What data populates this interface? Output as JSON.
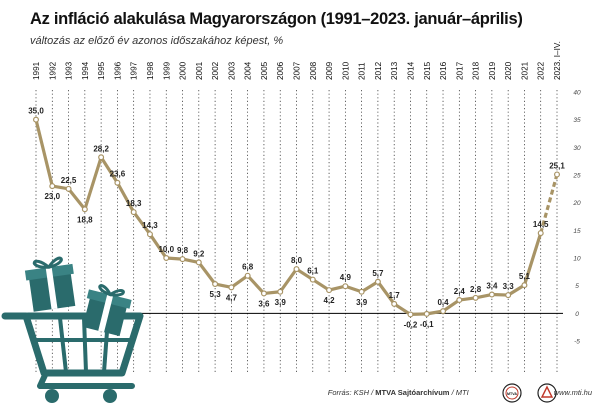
{
  "title": "Az infláció alakulása Magyarországon (1991–2023. január–április)",
  "subtitle": "változás az előző év azonos időszakához képest, %",
  "footer": {
    "source_prefix": "Forrás: KSH / ",
    "source_bold": "MTVA Sajtóarchívum",
    "source_suffix": " / MTI",
    "badge1": "MTVA",
    "website": "www.mti.hu"
  },
  "colors": {
    "line": "#a89466",
    "dashed": "#a89466",
    "marker_fill": "#ffffff",
    "zero_line": "#000000",
    "grid": "#222222",
    "cart": "#2a6b6c"
  },
  "icons": [
    "shopping-cart-icon",
    "gift-box-icon",
    "mtva-logo-icon",
    "mti-logo-icon"
  ],
  "chart_data": {
    "type": "line",
    "categories": [
      "1991",
      "1992",
      "1993",
      "1994",
      "1995",
      "1996",
      "1997",
      "1998",
      "1999",
      "2000",
      "2001",
      "2002",
      "2003",
      "2004",
      "2005",
      "2006",
      "2007",
      "2008",
      "2009",
      "2010",
      "2011",
      "2012",
      "2013",
      "2014",
      "2015",
      "2016",
      "2017",
      "2018",
      "2019",
      "2020",
      "2021",
      "2022",
      "2023. I–IV."
    ],
    "values": [
      35.0,
      23.0,
      22.5,
      18.8,
      28.2,
      23.6,
      18.3,
      14.3,
      10.0,
      9.8,
      9.2,
      5.3,
      4.7,
      6.8,
      3.6,
      3.9,
      8.0,
      6.1,
      4.2,
      4.9,
      3.9,
      5.7,
      1.7,
      -0.2,
      -0.1,
      0.4,
      2.4,
      2.8,
      3.4,
      3.3,
      5.1,
      14.5,
      25.1
    ],
    "value_labels": [
      "35,0",
      "23,0",
      "22,5",
      "18,8",
      "28,2",
      "23,6",
      "18,3",
      "14,3",
      "10,0",
      "9,8",
      "9,2",
      "5,3",
      "4,7",
      "6,8",
      "3,6",
      "3,9",
      "8,0",
      "6,1",
      "4,2",
      "4,9",
      "3,9",
      "5,7",
      "1,7",
      "-0,2",
      "-0,1",
      "0,4",
      "2,4",
      "2,8",
      "3,4",
      "3,3",
      "5,1",
      "14,5",
      "25,1"
    ],
    "label_positions": [
      "above",
      "below",
      "above",
      "below",
      "above",
      "above",
      "above",
      "above",
      "above",
      "above",
      "above",
      "below",
      "below",
      "above",
      "below",
      "below",
      "above",
      "above",
      "below",
      "above",
      "below",
      "above",
      "above",
      "below",
      "below",
      "above",
      "above",
      "above",
      "above",
      "above",
      "above",
      "above",
      "above"
    ],
    "dashed_from_index": 31,
    "ylim": [
      -5,
      40
    ],
    "yticks": [
      -5,
      0,
      5,
      10,
      15,
      20,
      25,
      30,
      35,
      40
    ],
    "ytick_labels": [
      "-5",
      "0",
      "5",
      "10",
      "15",
      "20",
      "25",
      "30",
      "35",
      "40"
    ],
    "y_axis_position": "right",
    "grid": "vertical",
    "xlabel": "",
    "ylabel": ""
  }
}
